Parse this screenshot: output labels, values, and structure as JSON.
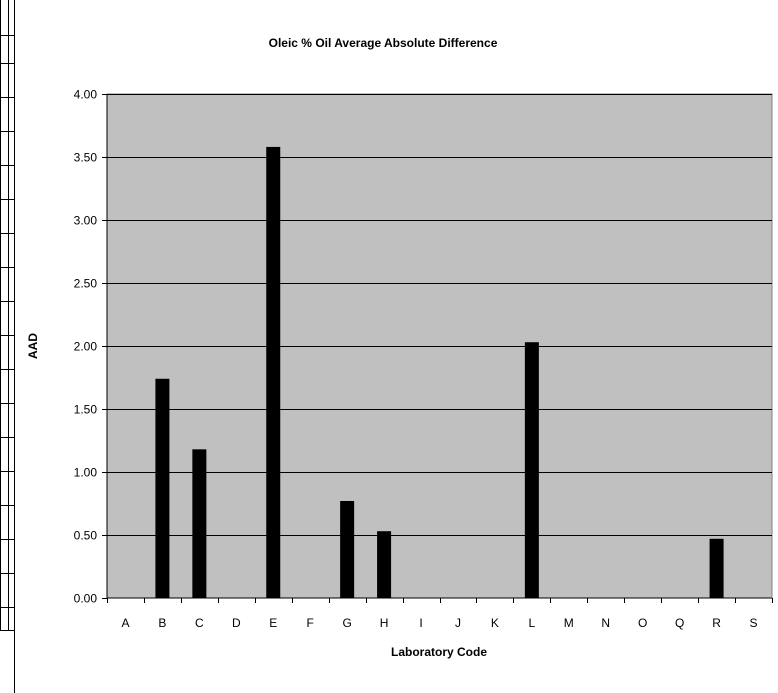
{
  "chart_data": {
    "type": "bar",
    "title": "Oleic % Oil Average Absolute Difference",
    "xlabel": "Laboratory Code",
    "ylabel": "AAD",
    "ylim": [
      0,
      4
    ],
    "ytick_labels": [
      "0.00",
      "0.50",
      "1.00",
      "1.50",
      "2.00",
      "2.50",
      "3.00",
      "3.50",
      "4.00"
    ],
    "categories": [
      "A",
      "B",
      "C",
      "D",
      "E",
      "F",
      "G",
      "H",
      "I",
      "J",
      "K",
      "L",
      "M",
      "N",
      "O",
      "Q",
      "R",
      "S"
    ],
    "values": [
      0,
      1.74,
      1.18,
      0,
      3.58,
      0,
      0.77,
      0.53,
      0,
      0,
      0,
      2.03,
      0,
      0,
      0,
      0,
      0.47,
      0
    ],
    "grid": true,
    "legend": "none",
    "colors": {
      "bar": "#000000",
      "plot_background": "#c0c0c0",
      "gridline": "#000000"
    }
  }
}
